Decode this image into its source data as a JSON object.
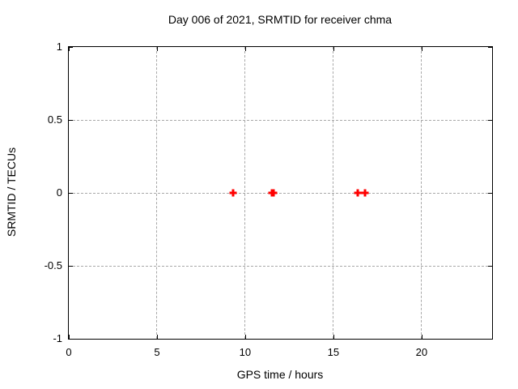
{
  "chart_data": {
    "type": "scatter",
    "title": "Day 006 of 2021, SRMTID for receiver chma",
    "xlabel": "GPS time / hours",
    "ylabel": "SRMTID / TECUs",
    "xlim": [
      0,
      24
    ],
    "ylim": [
      -1,
      1
    ],
    "xticks": [
      0,
      5,
      10,
      15,
      20
    ],
    "xtick_labels": [
      "0",
      "5",
      "10",
      "15",
      "20"
    ],
    "yticks": [
      -1,
      -0.5,
      0,
      0.5,
      1
    ],
    "ytick_labels": [
      "-1",
      "-0.5",
      "0",
      "0.5",
      "1"
    ],
    "grid": true,
    "grid_style": "dashed",
    "grid_color": "#a8a8a8",
    "border_color": "#000000",
    "legend": false,
    "series": [
      {
        "name": "SRMTID",
        "marker": "plus",
        "color": "#ff0000",
        "points": [
          {
            "x": 9.3,
            "y": 0.0
          },
          {
            "x": 11.5,
            "y": 0.0
          },
          {
            "x": 11.6,
            "y": 0.0
          },
          {
            "x": 16.4,
            "y": 0.0
          },
          {
            "x": 16.8,
            "y": 0.0
          }
        ]
      }
    ]
  }
}
